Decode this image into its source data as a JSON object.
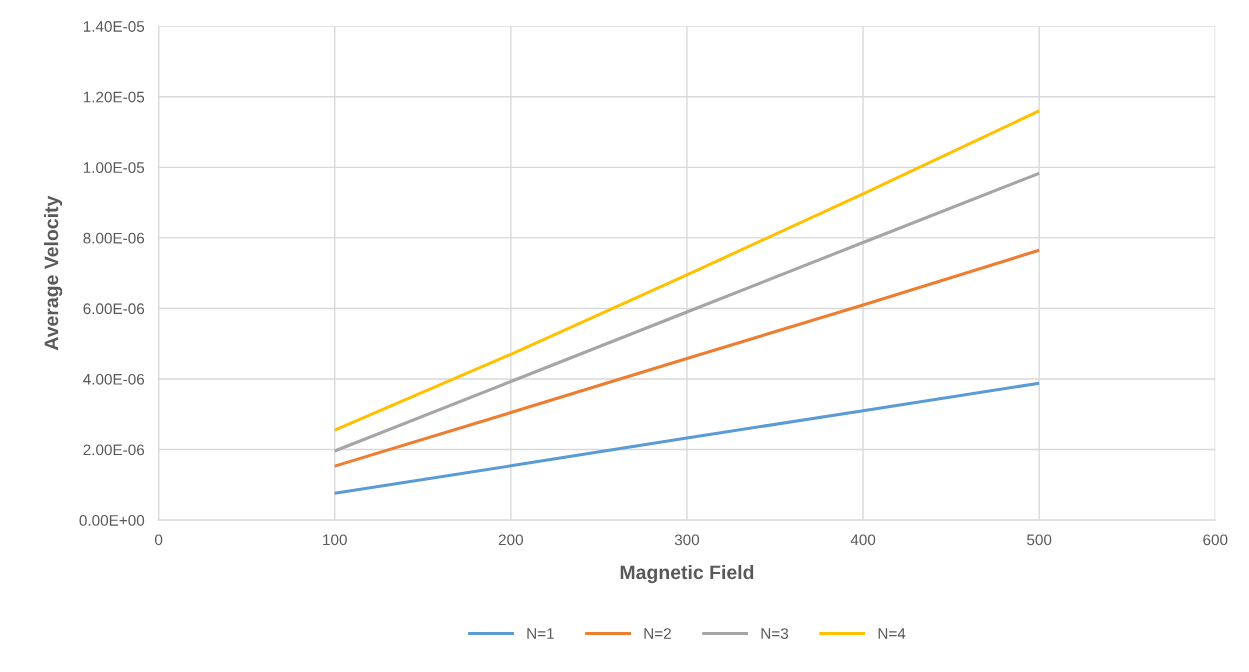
{
  "chart_data": {
    "type": "line",
    "xlabel": "Magnetic Field",
    "ylabel": "Average Velocity",
    "x": [
      100,
      200,
      300,
      400,
      500
    ],
    "series": [
      {
        "name": "N=1",
        "color": "#5b9bd5",
        "values": [
          7.6e-07,
          1.54e-06,
          2.33e-06,
          3.1e-06,
          3.88e-06
        ]
      },
      {
        "name": "N=2",
        "color": "#ed7d31",
        "values": [
          1.53e-06,
          3.05e-06,
          4.58e-06,
          6.1e-06,
          7.65e-06
        ]
      },
      {
        "name": "N=3",
        "color": "#a5a5a5",
        "values": [
          1.96e-06,
          3.93e-06,
          5.9e-06,
          7.87e-06,
          9.83e-06
        ]
      },
      {
        "name": "N=4",
        "color": "#ffc000",
        "values": [
          2.55e-06,
          4.7e-06,
          6.95e-06,
          9.25e-06,
          1.16e-05
        ]
      }
    ],
    "xlim": [
      0,
      600
    ],
    "xticks": [
      0,
      100,
      200,
      300,
      400,
      500,
      600
    ],
    "ylim": [
      0,
      1.4e-05
    ],
    "yticks": [
      {
        "value": 0,
        "label": "0.00E+00"
      },
      {
        "value": 2e-06,
        "label": "2.00E-06"
      },
      {
        "value": 4e-06,
        "label": "4.00E-06"
      },
      {
        "value": 6e-06,
        "label": "6.00E-06"
      },
      {
        "value": 8e-06,
        "label": "8.00E-06"
      },
      {
        "value": 1e-05,
        "label": "1.00E-05"
      },
      {
        "value": 1.2e-05,
        "label": "1.20E-05"
      },
      {
        "value": 1.4e-05,
        "label": "1.40E-05"
      }
    ],
    "grid": true,
    "legend": "bottom",
    "marker": "none",
    "line_style": "solid"
  }
}
